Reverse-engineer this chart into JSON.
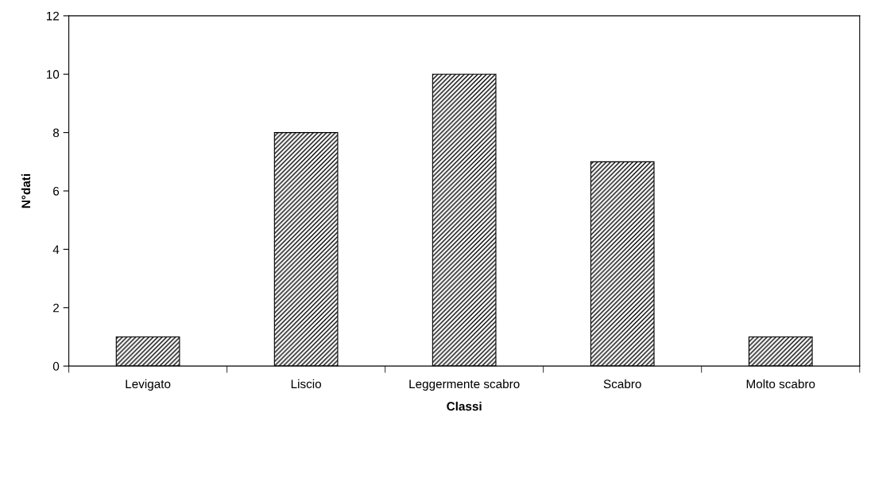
{
  "chart_data": {
    "type": "bar",
    "xlabel": "Classi",
    "ylabel": "N°dati",
    "categories": [
      "Levigato",
      "Liscio",
      "Leggermente scabro",
      "Scabro",
      "Molto scabro"
    ],
    "values": [
      1,
      8,
      10,
      7,
      1
    ],
    "color": "#000000",
    "ylim": [
      0,
      12
    ],
    "yticks": [
      0,
      2,
      4,
      6,
      8,
      10,
      12
    ],
    "grid": false,
    "legend": false
  }
}
